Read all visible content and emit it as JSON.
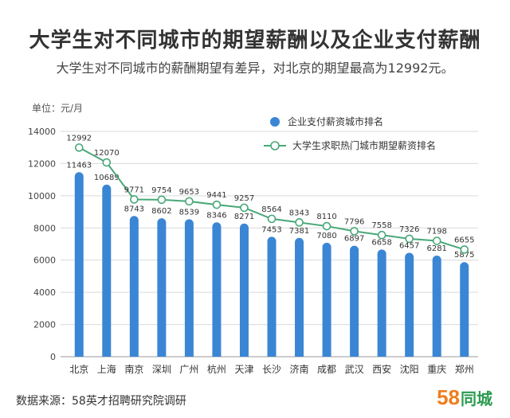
{
  "title": "大学生对不同城市的期望薪酬以及企业支付薪酬",
  "subtitle": "大学生对不同城市的薪酬期望有差异，对北京的期望最高为12992元。",
  "footer": {
    "source": "数据来源：58英才招聘研究院调研",
    "logo_num": "58",
    "logo_text": "同城"
  },
  "colors": {
    "bar": "#3a86d4",
    "line": "#48a878",
    "marker_fill": "#ffffff",
    "grid": "#d9d9d9",
    "logo_num": "#f07d1e",
    "logo_text": "#2a9a4f"
  },
  "chart_data": {
    "type": "bar",
    "unit_label": "单位：元/月",
    "categories": [
      "北京",
      "上海",
      "南京",
      "深圳",
      "广州",
      "杭州",
      "天津",
      "长沙",
      "济南",
      "成都",
      "武汉",
      "西安",
      "沈阳",
      "重庆",
      "郑州"
    ],
    "series": [
      {
        "name": "企业支付薪资城市排名",
        "type": "bar",
        "values": [
          11463,
          10689,
          8743,
          8602,
          8539,
          8346,
          8271,
          7453,
          7381,
          7080,
          6897,
          6658,
          6457,
          6281,
          5875
        ]
      },
      {
        "name": "大学生求职热门城市期望薪资排名",
        "type": "line",
        "values": [
          12992,
          12070,
          9771,
          9754,
          9653,
          9441,
          9257,
          8564,
          8343,
          8110,
          7796,
          7558,
          7326,
          7198,
          6655
        ]
      }
    ],
    "ylim": [
      0,
      14000
    ],
    "yticks": [
      0,
      2000,
      4000,
      6000,
      8000,
      10000,
      12000,
      14000
    ],
    "grid": true,
    "legend_position": "top-right"
  }
}
